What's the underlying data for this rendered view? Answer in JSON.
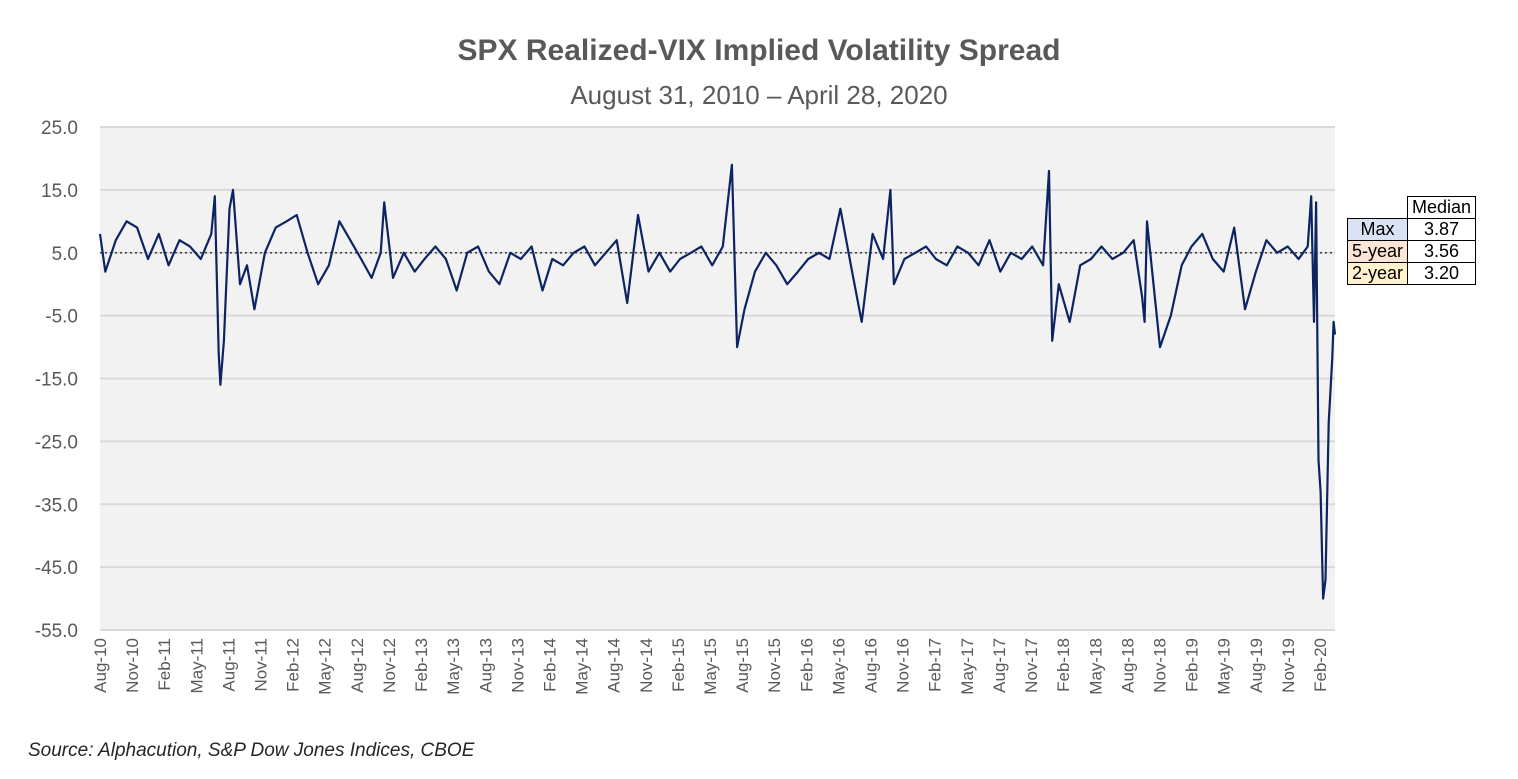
{
  "chart_data": {
    "type": "line",
    "title": "SPX Realized-VIX Implied Volatility Spread",
    "subtitle": "August 31, 2010 – April 28, 2020",
    "source": "Source: Alphacution, S&P Dow Jones Indices, CBOE",
    "ylim": [
      -55,
      25
    ],
    "yticks": [
      "25.0",
      "15.0",
      "5.0",
      "-5.0",
      "-15.0",
      "-25.0",
      "-35.0",
      "-45.0",
      "-55.0"
    ],
    "ytick_values": [
      25,
      15,
      5,
      -5,
      -15,
      -25,
      -35,
      -45,
      -55
    ],
    "xticks": [
      "Aug-10",
      "Nov-10",
      "Feb-11",
      "May-11",
      "Aug-11",
      "Nov-11",
      "Feb-12",
      "May-12",
      "Aug-12",
      "Nov-12",
      "Feb-13",
      "May-13",
      "Aug-13",
      "Nov-13",
      "Feb-14",
      "May-14",
      "Aug-14",
      "Nov-14",
      "Feb-15",
      "May-15",
      "Aug-15",
      "Nov-15",
      "Feb-16",
      "May-16",
      "Aug-16",
      "Nov-16",
      "Feb-17",
      "May-17",
      "Aug-17",
      "Nov-17",
      "Feb-18",
      "May-18",
      "Aug-18",
      "Nov-18",
      "Feb-19",
      "May-19",
      "Aug-19",
      "Nov-19",
      "Feb-20"
    ],
    "x_range": [
      "2010-08-31",
      "2020-04-28"
    ],
    "reference_line": 5.0,
    "grid": true,
    "colors": {
      "line": "#0c2461",
      "plot_bg": "#f2f2f2",
      "grid": "#d9d9d9"
    },
    "series": [
      {
        "name": "Spread",
        "points": [
          [
            "2010-08-31",
            8
          ],
          [
            "2010-09-15",
            2
          ],
          [
            "2010-10-15",
            7
          ],
          [
            "2010-11-15",
            10
          ],
          [
            "2010-12-15",
            9
          ],
          [
            "2011-01-15",
            4
          ],
          [
            "2011-02-15",
            8
          ],
          [
            "2011-03-15",
            3
          ],
          [
            "2011-04-15",
            7
          ],
          [
            "2011-05-15",
            6
          ],
          [
            "2011-06-15",
            4
          ],
          [
            "2011-07-15",
            8
          ],
          [
            "2011-07-25",
            14
          ],
          [
            "2011-08-05",
            -11
          ],
          [
            "2011-08-10",
            -16
          ],
          [
            "2011-08-20",
            -9
          ],
          [
            "2011-09-05",
            12
          ],
          [
            "2011-09-15",
            15
          ],
          [
            "2011-10-05",
            0
          ],
          [
            "2011-10-25",
            3
          ],
          [
            "2011-11-15",
            -4
          ],
          [
            "2011-12-15",
            5
          ],
          [
            "2012-01-15",
            9
          ],
          [
            "2012-02-15",
            10
          ],
          [
            "2012-03-15",
            11
          ],
          [
            "2012-04-15",
            5
          ],
          [
            "2012-05-15",
            0
          ],
          [
            "2012-06-15",
            3
          ],
          [
            "2012-07-15",
            10
          ],
          [
            "2012-08-15",
            7
          ],
          [
            "2012-09-15",
            4
          ],
          [
            "2012-10-15",
            1
          ],
          [
            "2012-11-10",
            5
          ],
          [
            "2012-11-20",
            13
          ],
          [
            "2012-12-15",
            1
          ],
          [
            "2013-01-15",
            5
          ],
          [
            "2013-02-15",
            2
          ],
          [
            "2013-03-15",
            4
          ],
          [
            "2013-04-15",
            6
          ],
          [
            "2013-05-15",
            4
          ],
          [
            "2013-06-15",
            -1
          ],
          [
            "2013-07-15",
            5
          ],
          [
            "2013-08-15",
            6
          ],
          [
            "2013-09-15",
            2
          ],
          [
            "2013-10-15",
            0
          ],
          [
            "2013-11-15",
            5
          ],
          [
            "2013-12-15",
            4
          ],
          [
            "2014-01-15",
            6
          ],
          [
            "2014-02-15",
            -1
          ],
          [
            "2014-03-15",
            4
          ],
          [
            "2014-04-15",
            3
          ],
          [
            "2014-05-15",
            5
          ],
          [
            "2014-06-15",
            6
          ],
          [
            "2014-07-15",
            3
          ],
          [
            "2014-08-15",
            5
          ],
          [
            "2014-09-15",
            7
          ],
          [
            "2014-10-15",
            -3
          ],
          [
            "2014-11-15",
            11
          ],
          [
            "2014-12-15",
            2
          ],
          [
            "2015-01-15",
            5
          ],
          [
            "2015-02-15",
            2
          ],
          [
            "2015-03-15",
            4
          ],
          [
            "2015-04-15",
            5
          ],
          [
            "2015-05-15",
            6
          ],
          [
            "2015-06-15",
            3
          ],
          [
            "2015-07-15",
            6
          ],
          [
            "2015-08-10",
            19
          ],
          [
            "2015-08-25",
            -10
          ],
          [
            "2015-09-15",
            -4
          ],
          [
            "2015-10-15",
            2
          ],
          [
            "2015-11-15",
            5
          ],
          [
            "2015-12-15",
            3
          ],
          [
            "2016-01-15",
            0
          ],
          [
            "2016-02-15",
            2
          ],
          [
            "2016-03-15",
            4
          ],
          [
            "2016-04-15",
            5
          ],
          [
            "2016-05-15",
            4
          ],
          [
            "2016-06-15",
            12
          ],
          [
            "2016-07-15",
            3
          ],
          [
            "2016-08-15",
            -6
          ],
          [
            "2016-09-15",
            8
          ],
          [
            "2016-10-15",
            4
          ],
          [
            "2016-11-05",
            15
          ],
          [
            "2016-11-15",
            0
          ],
          [
            "2016-12-15",
            4
          ],
          [
            "2017-01-15",
            5
          ],
          [
            "2017-02-15",
            6
          ],
          [
            "2017-03-15",
            4
          ],
          [
            "2017-04-15",
            3
          ],
          [
            "2017-05-15",
            6
          ],
          [
            "2017-06-15",
            5
          ],
          [
            "2017-07-15",
            3
          ],
          [
            "2017-08-15",
            7
          ],
          [
            "2017-09-15",
            2
          ],
          [
            "2017-10-15",
            5
          ],
          [
            "2017-11-15",
            4
          ],
          [
            "2017-12-15",
            6
          ],
          [
            "2018-01-15",
            3
          ],
          [
            "2018-02-01",
            18
          ],
          [
            "2018-02-10",
            -9
          ],
          [
            "2018-03-01",
            0
          ],
          [
            "2018-04-01",
            -6
          ],
          [
            "2018-05-01",
            3
          ],
          [
            "2018-06-01",
            4
          ],
          [
            "2018-07-01",
            6
          ],
          [
            "2018-08-01",
            4
          ],
          [
            "2018-09-01",
            5
          ],
          [
            "2018-10-01",
            7
          ],
          [
            "2018-10-25",
            -2
          ],
          [
            "2018-11-01",
            -6
          ],
          [
            "2018-11-08",
            10
          ],
          [
            "2018-12-15",
            -10
          ],
          [
            "2019-01-15",
            -5
          ],
          [
            "2019-02-15",
            3
          ],
          [
            "2019-03-15",
            6
          ],
          [
            "2019-04-15",
            8
          ],
          [
            "2019-05-15",
            4
          ],
          [
            "2019-06-15",
            2
          ],
          [
            "2019-07-15",
            9
          ],
          [
            "2019-08-15",
            -4
          ],
          [
            "2019-09-15",
            2
          ],
          [
            "2019-10-15",
            7
          ],
          [
            "2019-11-15",
            5
          ],
          [
            "2019-12-15",
            6
          ],
          [
            "2020-01-15",
            4
          ],
          [
            "2020-02-10",
            6
          ],
          [
            "2020-02-20",
            14
          ],
          [
            "2020-02-28",
            -6
          ],
          [
            "2020-03-05",
            13
          ],
          [
            "2020-03-12",
            -28
          ],
          [
            "2020-03-18",
            -33
          ],
          [
            "2020-03-25",
            -50
          ],
          [
            "2020-04-01",
            -47
          ],
          [
            "2020-04-10",
            -22
          ],
          [
            "2020-04-20",
            -12
          ],
          [
            "2020-04-24",
            -6
          ],
          [
            "2020-04-28",
            -8
          ]
        ]
      }
    ]
  },
  "median_table": {
    "header": "Median",
    "rows": [
      {
        "label": "Max",
        "value": "3.87",
        "color": "#dae3f3"
      },
      {
        "label": "5-year",
        "value": "3.56",
        "color": "#fbe5d6"
      },
      {
        "label": "2-year",
        "value": "3.20",
        "color": "#fff2cc"
      }
    ]
  }
}
